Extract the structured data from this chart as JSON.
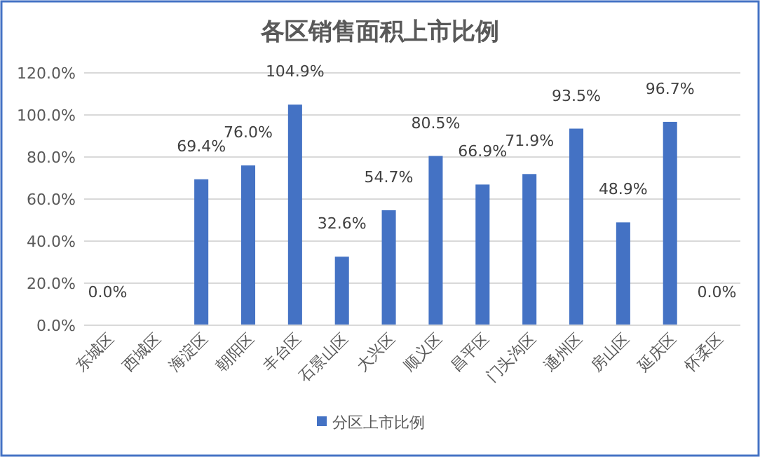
{
  "chart_data": {
    "type": "bar",
    "title": "各区销售面积上市比例",
    "categories": [
      "东城区",
      "西城区",
      "海淀区",
      "朝阳区",
      "丰台区",
      "石景山区",
      "大兴区",
      "顺义区",
      "昌平区",
      "门头沟区",
      "通州区",
      "房山区",
      "延庆区",
      "怀柔区"
    ],
    "series": [
      {
        "name": "分区上市比例",
        "color": "#4472c4",
        "values": [
          0.0,
          null,
          69.4,
          76.0,
          104.9,
          32.6,
          54.7,
          80.5,
          66.9,
          71.9,
          93.5,
          48.9,
          96.7,
          0.0
        ],
        "value_labels": [
          "0.0%",
          null,
          "69.4%",
          "76.0%",
          "104.9%",
          "32.6%",
          "54.7%",
          "80.5%",
          "66.9%",
          "71.9%",
          "93.5%",
          "48.9%",
          "96.7%",
          "0.0%"
        ]
      }
    ],
    "ylim": [
      0,
      120
    ],
    "yticks": [
      {
        "value": 0,
        "label": "0.0%"
      },
      {
        "value": 20,
        "label": "20.0%"
      },
      {
        "value": 40,
        "label": "40.0%"
      },
      {
        "value": 60,
        "label": "60.0%"
      },
      {
        "value": 80,
        "label": "80.0%"
      },
      {
        "value": 100,
        "label": "100.0%"
      },
      {
        "value": 120,
        "label": "120.0%"
      }
    ],
    "grid": "y",
    "legend": "bottom"
  }
}
